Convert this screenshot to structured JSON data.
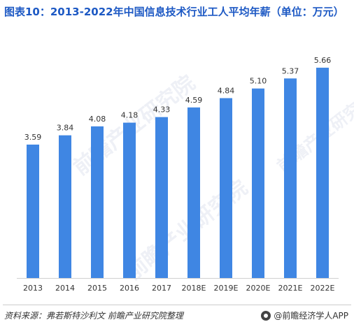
{
  "title": "图表10：2013-2022年中国信息技术行业工人平均年薪（单位：万元）",
  "watermarks": [
    "前瞻产业研究院",
    "前瞻产业研究院",
    "前瞻产业研究院"
  ],
  "source": "资料来源：弗若斯特沙利文  前瞻产业研究院整理",
  "brand": "@前瞻经济学人APP",
  "colors": {
    "bar": "#3f86e3",
    "title": "#1d59c4",
    "axis": "#d0d0d0",
    "text": "#333333"
  },
  "chart_data": {
    "type": "bar",
    "categories": [
      "2013",
      "2014",
      "2015",
      "2016",
      "2017",
      "2018E",
      "2019E",
      "2020E",
      "2021E",
      "2022E"
    ],
    "values": [
      3.59,
      3.84,
      4.08,
      4.18,
      4.33,
      4.59,
      4.84,
      5.1,
      5.37,
      5.66
    ],
    "value_labels": [
      "3.59",
      "3.84",
      "4.08",
      "4.18",
      "4.33",
      "4.59",
      "4.84",
      "5.10",
      "5.37",
      "5.66"
    ],
    "title": "图表10：2013-2022年中国信息技术行业工人平均年薪（单位：万元）",
    "xlabel": "",
    "ylabel": "",
    "ylim": [
      0,
      6
    ],
    "grid": false,
    "legend": "none"
  }
}
